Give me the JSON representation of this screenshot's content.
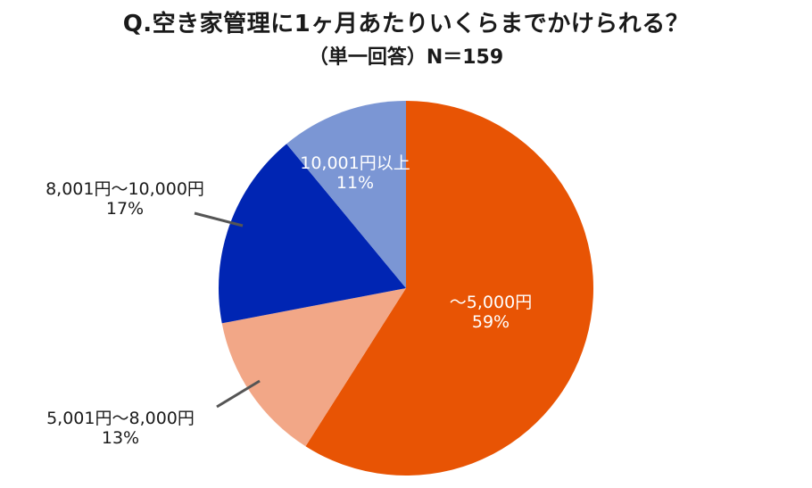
{
  "title": "Q.空き家管理に1ヶ月あたりいくらまでかけられる？",
  "subtitle": "（単一回答）N＝159",
  "colors": {
    "seg1": "#E85404",
    "seg2": "#F2A787",
    "seg3": "#0025B3",
    "seg4": "#7B96D4",
    "leader": "#555555"
  },
  "labels": {
    "seg1": {
      "name": "～5,000円",
      "pct": "59%"
    },
    "seg2": {
      "name": "5,001円～8,000円",
      "pct": "13%"
    },
    "seg3": {
      "name": "8,001円～10,000円",
      "pct": "17%"
    },
    "seg4": {
      "name": "10,001円以上",
      "pct": "11%"
    }
  },
  "chart_data": {
    "type": "pie",
    "title": "Q.空き家管理に1ヶ月あたりいくらまでかけられる？",
    "subtitle": "（単一回答）N＝159",
    "categories": [
      "～5,000円",
      "5,001円～8,000円",
      "8,001円～10,000円",
      "10,001円以上"
    ],
    "values": [
      59,
      13,
      17,
      11
    ],
    "unit": "%",
    "start_angle": "12 o'clock",
    "direction": "clockwise",
    "colors": [
      "#E85404",
      "#F2A787",
      "#0025B3",
      "#7B96D4"
    ],
    "legend": "none (labels on/near slices)"
  }
}
